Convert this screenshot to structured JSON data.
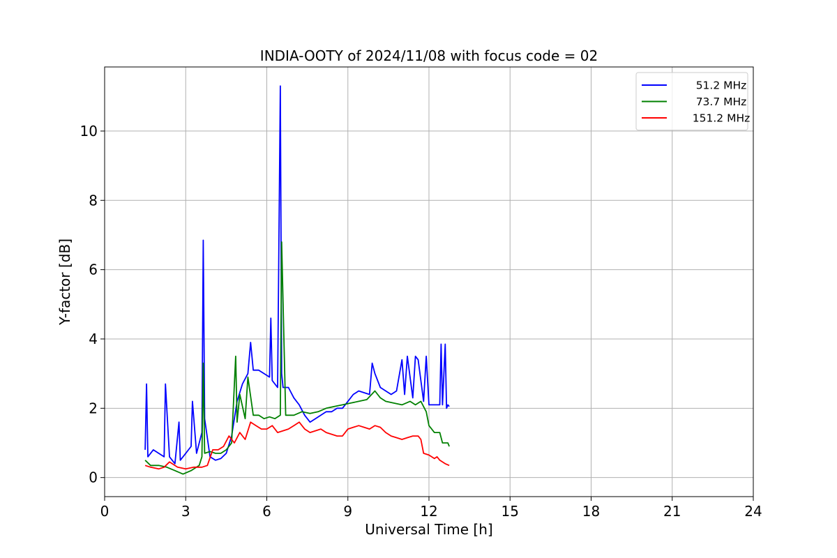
{
  "chart_data": {
    "type": "line",
    "title": "INDIA-OOTY of 2024/11/08 with focus code = 02",
    "xlabel": "Universal Time [h]",
    "ylabel": "Y-factor [dB]",
    "xlim": [
      0,
      24
    ],
    "ylim": [
      -0.55,
      11.85
    ],
    "x_ticks": [
      0,
      3,
      6,
      9,
      12,
      15,
      18,
      21,
      24
    ],
    "y_ticks": [
      0,
      2,
      4,
      6,
      8,
      10
    ],
    "grid": true,
    "legend_position": "top-right",
    "series": [
      {
        "name": "51.2 MHz",
        "color": "#0000ff",
        "x": [
          1.5,
          1.55,
          1.6,
          1.8,
          2.0,
          2.2,
          2.25,
          2.4,
          2.6,
          2.75,
          2.8,
          3.0,
          3.2,
          3.25,
          3.4,
          3.6,
          3.65,
          3.7,
          3.9,
          4.1,
          4.3,
          4.5,
          4.7,
          4.9,
          5.1,
          5.3,
          5.4,
          5.5,
          5.7,
          5.9,
          6.1,
          6.15,
          6.2,
          6.4,
          6.5,
          6.55,
          6.6,
          6.8,
          7.0,
          7.2,
          7.4,
          7.6,
          7.8,
          8.0,
          8.2,
          8.4,
          8.6,
          8.8,
          9.0,
          9.2,
          9.4,
          9.6,
          9.8,
          9.9,
          10.0,
          10.2,
          10.4,
          10.6,
          10.8,
          11.0,
          11.1,
          11.2,
          11.4,
          11.5,
          11.6,
          11.8,
          11.9,
          12.0,
          12.2,
          12.4,
          12.45,
          12.5,
          12.6,
          12.65,
          12.7,
          12.75
        ],
        "values": [
          0.8,
          2.7,
          0.6,
          0.8,
          0.7,
          0.6,
          2.7,
          0.6,
          0.4,
          1.6,
          0.5,
          0.7,
          0.9,
          2.2,
          0.7,
          1.3,
          6.85,
          1.7,
          0.6,
          0.5,
          0.55,
          0.7,
          1.2,
          2.2,
          2.7,
          3.0,
          3.9,
          3.1,
          3.1,
          3.0,
          2.9,
          4.6,
          2.8,
          2.6,
          11.3,
          3.0,
          2.6,
          2.6,
          2.3,
          2.1,
          1.8,
          1.6,
          1.7,
          1.8,
          1.9,
          1.9,
          2.0,
          2.0,
          2.2,
          2.4,
          2.5,
          2.45,
          2.4,
          3.3,
          3.0,
          2.6,
          2.5,
          2.4,
          2.5,
          3.4,
          2.4,
          3.5,
          2.3,
          3.5,
          3.4,
          2.2,
          3.5,
          2.1,
          2.1,
          2.1,
          3.85,
          2.1,
          3.85,
          2.0,
          2.1,
          2.05
        ]
      },
      {
        "name": "73.7 MHz",
        "color": "#008000",
        "x": [
          1.5,
          1.7,
          2.0,
          2.3,
          2.6,
          2.9,
          3.2,
          3.5,
          3.6,
          3.65,
          3.7,
          3.9,
          4.1,
          4.3,
          4.5,
          4.7,
          4.85,
          4.9,
          5.0,
          5.2,
          5.3,
          5.5,
          5.7,
          5.9,
          6.1,
          6.3,
          6.5,
          6.55,
          6.7,
          7.0,
          7.3,
          7.6,
          7.9,
          8.2,
          8.5,
          8.8,
          9.1,
          9.4,
          9.7,
          10.0,
          10.2,
          10.4,
          10.7,
          11.0,
          11.3,
          11.5,
          11.7,
          11.9,
          12.0,
          12.2,
          12.4,
          12.5,
          12.7,
          12.75
        ],
        "values": [
          0.5,
          0.35,
          0.35,
          0.3,
          0.2,
          0.1,
          0.2,
          0.35,
          0.6,
          3.3,
          0.7,
          0.75,
          0.7,
          0.7,
          0.8,
          1.0,
          3.5,
          1.6,
          2.4,
          1.7,
          2.9,
          1.8,
          1.8,
          1.7,
          1.75,
          1.7,
          1.8,
          6.8,
          1.8,
          1.8,
          1.9,
          1.85,
          1.9,
          2.0,
          2.05,
          2.1,
          2.15,
          2.2,
          2.25,
          2.5,
          2.3,
          2.2,
          2.15,
          2.1,
          2.2,
          2.1,
          2.2,
          1.9,
          1.5,
          1.3,
          1.3,
          1.0,
          1.0,
          0.9
        ]
      },
      {
        "name": "151.2 MHz",
        "color": "#ff0000",
        "x": [
          1.5,
          1.7,
          2.0,
          2.2,
          2.4,
          2.7,
          3.0,
          3.3,
          3.6,
          3.8,
          4.0,
          4.2,
          4.4,
          4.6,
          4.8,
          5.0,
          5.2,
          5.4,
          5.6,
          5.8,
          6.0,
          6.2,
          6.4,
          6.6,
          6.8,
          7.0,
          7.2,
          7.4,
          7.6,
          7.8,
          8.0,
          8.2,
          8.4,
          8.6,
          8.8,
          9.0,
          9.2,
          9.4,
          9.6,
          9.8,
          10.0,
          10.2,
          10.4,
          10.6,
          10.8,
          11.0,
          11.2,
          11.4,
          11.6,
          11.7,
          11.8,
          12.0,
          12.2,
          12.3,
          12.4,
          12.5,
          12.6,
          12.75
        ],
        "values": [
          0.35,
          0.3,
          0.25,
          0.3,
          0.45,
          0.3,
          0.25,
          0.3,
          0.3,
          0.35,
          0.8,
          0.8,
          0.9,
          1.2,
          1.0,
          1.3,
          1.1,
          1.6,
          1.5,
          1.4,
          1.4,
          1.5,
          1.3,
          1.35,
          1.4,
          1.5,
          1.6,
          1.4,
          1.3,
          1.35,
          1.4,
          1.3,
          1.25,
          1.2,
          1.2,
          1.4,
          1.45,
          1.5,
          1.45,
          1.4,
          1.5,
          1.45,
          1.3,
          1.2,
          1.15,
          1.1,
          1.15,
          1.2,
          1.2,
          1.1,
          0.7,
          0.65,
          0.55,
          0.6,
          0.5,
          0.45,
          0.4,
          0.35
        ]
      }
    ]
  }
}
